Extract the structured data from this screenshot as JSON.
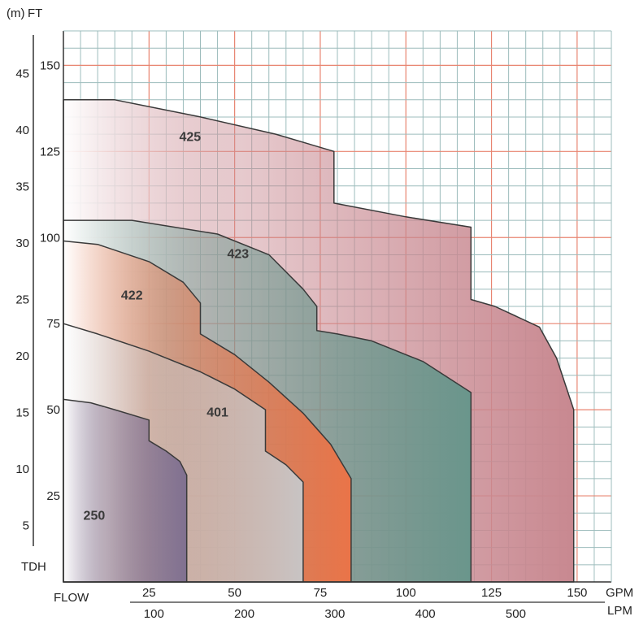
{
  "chart_data": {
    "type": "area",
    "title": "",
    "units": {
      "head_metric": "(m)",
      "head_imperial": "FT",
      "flow_gpm": "GPM",
      "flow_lpm": "LPM"
    },
    "ylabel": "TDH",
    "xlabel": "FLOW",
    "x_gpm": {
      "range": [
        0,
        160
      ],
      "ticks": [
        25,
        50,
        75,
        100,
        125,
        150
      ]
    },
    "x_lpm": {
      "ticks": [
        100,
        200,
        300,
        400,
        500
      ]
    },
    "y_ft": {
      "range": [
        0,
        160
      ],
      "ticks": [
        25,
        50,
        75,
        100,
        125,
        150
      ]
    },
    "y_m": {
      "ticks": [
        5,
        10,
        15,
        20,
        25,
        30,
        35,
        40,
        45
      ]
    },
    "grid": true,
    "series": [
      {
        "name": "425",
        "color": "#c88890",
        "points": [
          [
            0,
            140
          ],
          [
            15,
            140
          ],
          [
            40,
            135
          ],
          [
            62,
            130
          ],
          [
            79,
            125
          ],
          [
            79,
            110
          ],
          [
            100,
            106
          ],
          [
            119,
            103
          ],
          [
            119,
            82
          ],
          [
            126,
            80
          ],
          [
            139,
            74
          ],
          [
            144,
            65
          ],
          [
            149,
            50
          ],
          [
            149,
            0
          ],
          [
            0,
            0
          ]
        ]
      },
      {
        "name": "423",
        "color": "#6a968c",
        "points": [
          [
            0,
            105
          ],
          [
            20,
            105
          ],
          [
            45,
            101
          ],
          [
            60,
            95
          ],
          [
            70,
            85
          ],
          [
            74,
            80
          ],
          [
            74,
            73
          ],
          [
            80,
            72
          ],
          [
            90,
            70
          ],
          [
            105,
            64
          ],
          [
            119,
            55
          ],
          [
            119,
            0
          ],
          [
            0,
            0
          ]
        ]
      },
      {
        "name": "422",
        "color": "#ea7448",
        "points": [
          [
            0,
            99
          ],
          [
            10,
            98
          ],
          [
            25,
            93
          ],
          [
            35,
            87
          ],
          [
            40,
            81
          ],
          [
            40,
            72
          ],
          [
            50,
            66
          ],
          [
            60,
            58
          ],
          [
            70,
            49
          ],
          [
            78,
            40
          ],
          [
            84,
            30
          ],
          [
            84,
            0
          ],
          [
            0,
            0
          ]
        ]
      },
      {
        "name": "401",
        "color": "#c8c4c4",
        "points": [
          [
            0,
            75
          ],
          [
            10,
            72
          ],
          [
            25,
            67
          ],
          [
            40,
            61
          ],
          [
            50,
            56
          ],
          [
            59,
            50
          ],
          [
            59,
            38
          ],
          [
            65,
            34
          ],
          [
            70,
            29
          ],
          [
            70,
            0
          ],
          [
            0,
            0
          ]
        ]
      },
      {
        "name": "250",
        "color": "#807090",
        "points": [
          [
            0,
            53
          ],
          [
            8,
            52
          ],
          [
            15,
            50
          ],
          [
            25,
            47
          ],
          [
            25,
            41
          ],
          [
            30,
            38
          ],
          [
            34,
            35
          ],
          [
            36,
            31
          ],
          [
            36,
            0
          ],
          [
            0,
            0
          ]
        ]
      }
    ]
  }
}
